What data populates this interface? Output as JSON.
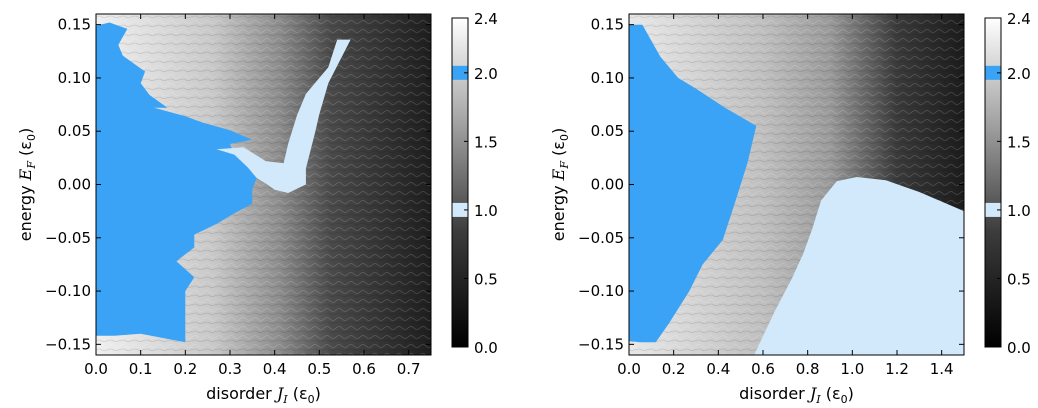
{
  "chart_data": [
    {
      "type": "heatmap",
      "panel": "left",
      "xlabel": {
        "prefix": "disorder ",
        "var": "J",
        "sub": "I",
        "unit": " (ε",
        "unit_sub": "0",
        "unit_close": ")"
      },
      "ylabel": {
        "prefix": "energy ",
        "var": "E",
        "sub": "F",
        "unit": " (ε",
        "unit_sub": "0",
        "unit_close": ")"
      },
      "xlim": [
        0.0,
        0.75
      ],
      "ylim": [
        -0.16,
        0.16
      ],
      "x_ticks": [
        "0.0",
        "0.1",
        "0.2",
        "0.3",
        "0.4",
        "0.5",
        "0.6",
        "0.7"
      ],
      "x_tick_values": [
        0.0,
        0.1,
        0.2,
        0.3,
        0.4,
        0.5,
        0.6,
        0.7
      ],
      "y_ticks": [
        "0.15",
        "0.10",
        "0.05",
        "0.00",
        "−0.05",
        "−0.10",
        "−0.15"
      ],
      "y_tick_values": [
        0.15,
        0.1,
        0.05,
        0.0,
        -0.05,
        -0.1,
        -0.15
      ],
      "regions": [
        {
          "label": "quantized plateau (value 2)",
          "color": "#3aa3f5",
          "outline": [
            [
              0.0,
              0.149
            ],
            [
              0.03,
              0.152
            ],
            [
              0.07,
              0.146
            ],
            [
              0.05,
              0.131
            ],
            [
              0.06,
              0.121
            ],
            [
              0.09,
              0.112
            ],
            [
              0.11,
              0.106
            ],
            [
              0.1,
              0.095
            ],
            [
              0.12,
              0.084
            ],
            [
              0.16,
              0.072
            ],
            [
              0.13,
              0.072
            ],
            [
              0.2,
              0.064
            ],
            [
              0.24,
              0.058
            ],
            [
              0.3,
              0.051
            ],
            [
              0.35,
              0.042
            ],
            [
              0.3,
              0.038
            ],
            [
              0.31,
              0.028
            ],
            [
              0.34,
              0.016
            ],
            [
              0.36,
              0.006
            ],
            [
              0.35,
              -0.004
            ],
            [
              0.35,
              -0.018
            ],
            [
              0.31,
              -0.027
            ],
            [
              0.27,
              -0.037
            ],
            [
              0.22,
              -0.047
            ],
            [
              0.22,
              -0.059
            ],
            [
              0.18,
              -0.072
            ],
            [
              0.22,
              -0.087
            ],
            [
              0.2,
              -0.1
            ],
            [
              0.2,
              -0.116
            ],
            [
              0.2,
              -0.13
            ],
            [
              0.2,
              -0.148
            ],
            [
              0.1,
              -0.14
            ],
            [
              0.04,
              -0.142
            ],
            [
              0.0,
              -0.142
            ]
          ]
        },
        {
          "label": "quantized plateau (value 1)",
          "color": "#d2e9fb",
          "outline": [
            [
              0.54,
              0.136
            ],
            [
              0.52,
              0.11
            ],
            [
              0.47,
              0.085
            ],
            [
              0.45,
              0.065
            ],
            [
              0.43,
              0.038
            ],
            [
              0.42,
              0.02
            ],
            [
              0.38,
              0.022
            ],
            [
              0.33,
              0.035
            ],
            [
              0.27,
              0.033
            ],
            [
              0.31,
              0.028
            ],
            [
              0.34,
              0.016
            ],
            [
              0.36,
              0.006
            ],
            [
              0.38,
              0.001
            ],
            [
              0.4,
              -0.005
            ],
            [
              0.43,
              -0.008
            ],
            [
              0.47,
              0.0
            ],
            [
              0.47,
              0.015
            ],
            [
              0.49,
              0.048
            ],
            [
              0.5,
              0.066
            ],
            [
              0.52,
              0.095
            ],
            [
              0.57,
              0.136
            ]
          ]
        }
      ],
      "colorbar": {
        "min": 0.0,
        "max": 2.4,
        "ticks": [
          "0.0",
          "0.5",
          "1.0",
          "1.5",
          "2.0",
          "2.4"
        ],
        "tick_values": [
          0.0,
          0.5,
          1.0,
          1.5,
          2.0,
          2.4
        ],
        "bands": [
          {
            "value": 1.0,
            "color": "#d2e9fb"
          },
          {
            "value": 2.0,
            "color": "#3aa3f5"
          }
        ]
      }
    },
    {
      "type": "heatmap",
      "panel": "right",
      "xlabel": {
        "prefix": "disorder ",
        "var": "J",
        "sub": "I",
        "unit": " (ε",
        "unit_sub": "0",
        "unit_close": ")"
      },
      "ylabel": {
        "prefix": "energy ",
        "var": "E",
        "sub": "F",
        "unit": " (ε",
        "unit_sub": "0",
        "unit_close": ")"
      },
      "xlim": [
        0.0,
        1.5
      ],
      "ylim": [
        -0.16,
        0.16
      ],
      "x_ticks": [
        "0.0",
        "0.2",
        "0.4",
        "0.6",
        "0.8",
        "1.0",
        "1.2",
        "1.4"
      ],
      "x_tick_values": [
        0.0,
        0.2,
        0.4,
        0.6,
        0.8,
        1.0,
        1.2,
        1.4
      ],
      "y_ticks": [
        "0.15",
        "0.10",
        "0.05",
        "0.00",
        "−0.05",
        "−0.10",
        "−0.15"
      ],
      "y_tick_values": [
        0.15,
        0.1,
        0.05,
        0.0,
        -0.05,
        -0.1,
        -0.15
      ],
      "regions": [
        {
          "label": "quantized plateau (value 2)",
          "color": "#3aa3f5",
          "outline": [
            [
              0.0,
              0.15
            ],
            [
              0.06,
              0.15
            ],
            [
              0.1,
              0.135
            ],
            [
              0.14,
              0.12
            ],
            [
              0.22,
              0.1
            ],
            [
              0.3,
              0.09
            ],
            [
              0.43,
              0.072
            ],
            [
              0.57,
              0.055
            ],
            [
              0.53,
              0.02
            ],
            [
              0.47,
              -0.02
            ],
            [
              0.42,
              -0.052
            ],
            [
              0.33,
              -0.075
            ],
            [
              0.27,
              -0.1
            ],
            [
              0.18,
              -0.13
            ],
            [
              0.12,
              -0.148
            ],
            [
              0.05,
              -0.148
            ],
            [
              0.0,
              -0.147
            ]
          ]
        },
        {
          "label": "quantized plateau (value 1)",
          "color": "#d2e9fb",
          "outline": [
            [
              1.5,
              -0.16
            ],
            [
              1.5,
              -0.025
            ],
            [
              1.3,
              -0.007
            ],
            [
              1.15,
              0.004
            ],
            [
              1.02,
              0.007
            ],
            [
              0.93,
              0.003
            ],
            [
              0.86,
              -0.015
            ],
            [
              0.82,
              -0.042
            ],
            [
              0.78,
              -0.065
            ],
            [
              0.73,
              -0.088
            ],
            [
              0.65,
              -0.12
            ],
            [
              0.56,
              -0.16
            ]
          ]
        }
      ],
      "colorbar": {
        "min": 0.0,
        "max": 2.4,
        "ticks": [
          "0.0",
          "0.5",
          "1.0",
          "1.5",
          "2.0",
          "2.4"
        ],
        "tick_values": [
          0.0,
          0.5,
          1.0,
          1.5,
          2.0,
          2.4
        ],
        "bands": [
          {
            "value": 1.0,
            "color": "#d2e9fb"
          },
          {
            "value": 2.0,
            "color": "#3aa3f5"
          }
        ]
      }
    }
  ]
}
